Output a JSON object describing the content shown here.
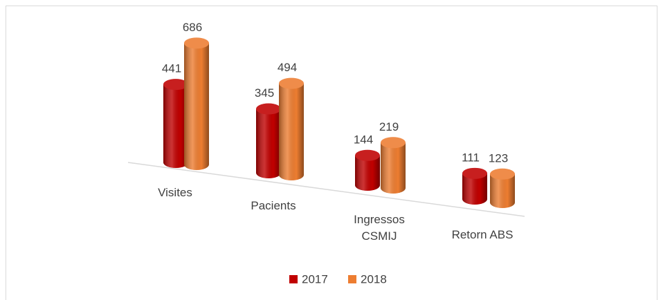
{
  "chart_data": {
    "type": "bar3d",
    "categories": [
      "Visites",
      "Pacients",
      "Ingressos CSMIJ",
      "Retorn ABS"
    ],
    "series": [
      {
        "name": "2017",
        "color": "#c00000",
        "values": [
          441,
          345,
          144,
          111
        ]
      },
      {
        "name": "2018",
        "color": "#ed7d31",
        "values": [
          686,
          494,
          219,
          123
        ]
      }
    ],
    "legend": "bottom"
  }
}
